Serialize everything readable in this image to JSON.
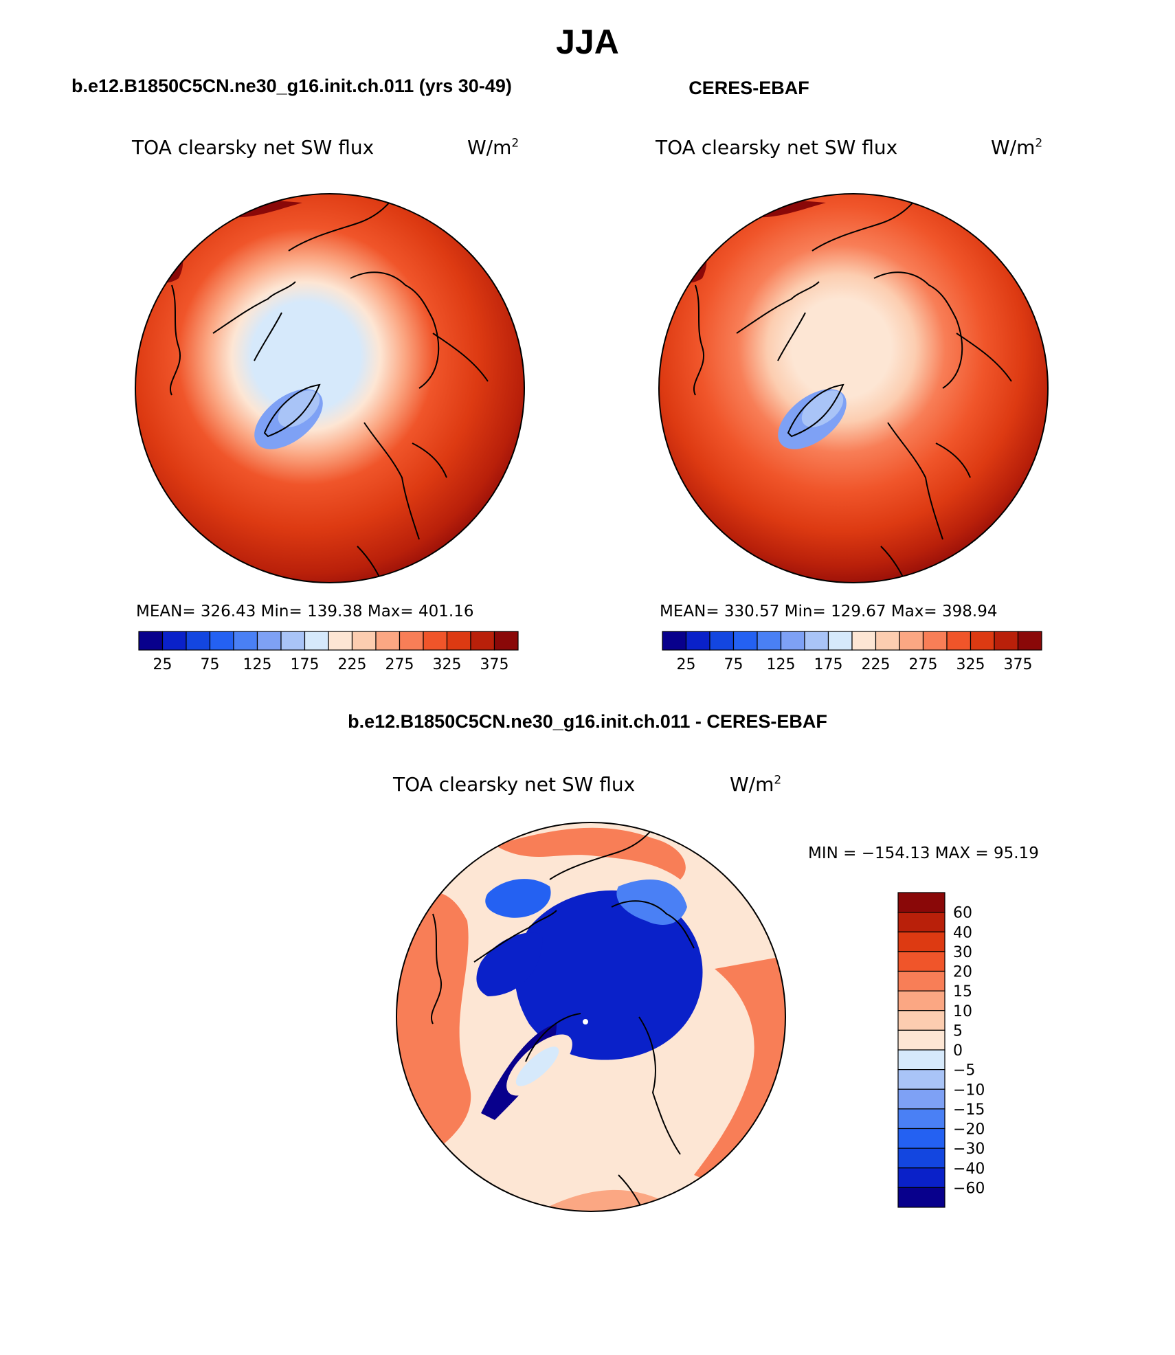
{
  "page": {
    "season": "JJA"
  },
  "colors": {
    "full_scale": [
      "#08008c",
      "#0a21c9",
      "#1346e0",
      "#2461f2",
      "#4a80f5",
      "#7ea1f5",
      "#a9c4f7",
      "#d6e9fb",
      "#fde6d4",
      "#fccdb0",
      "#fba783",
      "#f87e57",
      "#f0552a",
      "#dd3a12",
      "#b9200a",
      "#8a0808"
    ],
    "diff_scale": [
      "#08008c",
      "#0a21c9",
      "#1346e0",
      "#2461f2",
      "#4a80f5",
      "#7ea1f5",
      "#a9c4f7",
      "#d6e9fb",
      "#fde6d4",
      "#fccdb0",
      "#fba783",
      "#f87e57",
      "#f0552a",
      "#dd3a12",
      "#b9200a",
      "#8a0808"
    ],
    "coast": "#000000"
  },
  "panels": [
    {
      "id": "model",
      "header": "b.e12.B1850C5CN.ne30_g16.init.ch.011 (yrs 30-49)",
      "variable": "TOA clearsky net SW flux",
      "units": "W/m",
      "units_exp": "2",
      "stats": "MEAN= 326.43   Min= 139.38   Max= 401.16",
      "colorbar_ticks": [
        "25",
        "75",
        "125",
        "175",
        "225",
        "275",
        "325",
        "375"
      ]
    },
    {
      "id": "obs",
      "header": "CERES-EBAF",
      "variable": "TOA clearsky net SW flux",
      "units": "W/m",
      "units_exp": "2",
      "stats": "MEAN= 330.57   Min= 129.67   Max= 398.94",
      "colorbar_ticks": [
        "25",
        "75",
        "125",
        "175",
        "225",
        "275",
        "325",
        "375"
      ]
    }
  ],
  "difference": {
    "header": "b.e12.B1850C5CN.ne30_g16.init.ch.011 - CERES-EBAF",
    "variable": "TOA clearsky net SW flux",
    "units": "W/m",
    "units_exp": "2",
    "stats": "MIN = −154.13 MAX =   95.19",
    "colorbar_ticks": [
      "60",
      "40",
      "30",
      "20",
      "15",
      "10",
      "5",
      "0",
      "−5",
      "−10",
      "−15",
      "−20",
      "−30",
      "−40",
      "−60"
    ]
  }
}
